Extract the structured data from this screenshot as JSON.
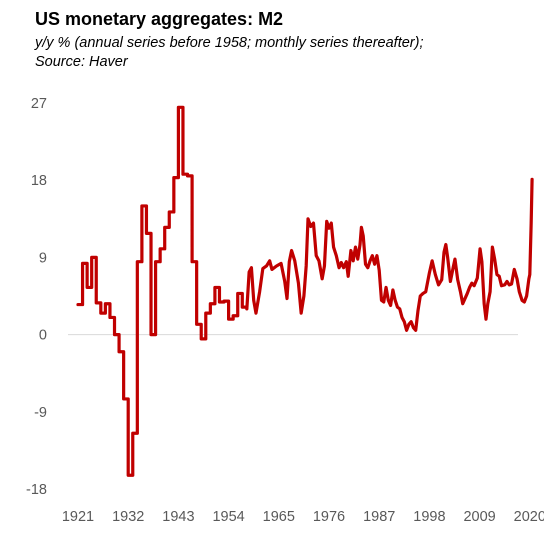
{
  "chart_data": {
    "type": "line",
    "title": "US monetary aggregates: M2",
    "subtitle_lines": [
      "y/y % (annual series before 1958; monthly series thereafter);",
      "Source: Haver"
    ],
    "xlabel": "",
    "ylabel": "",
    "x_ticks": [
      "1921",
      "1932",
      "1943",
      "1954",
      "1965",
      "1976",
      "1987",
      "1998",
      "2009",
      "2020"
    ],
    "y_ticks": [
      "27",
      "18",
      "9",
      "0",
      "-9",
      "-18"
    ],
    "xlim": [
      1921,
      2022
    ],
    "ylim": [
      -18,
      27
    ],
    "grid": false,
    "legend": "none",
    "line_color": "#c00000",
    "zero_line_color": "#d9d9d9",
    "series": [
      {
        "annual_steps": [
          [
            1921,
            3.5
          ],
          [
            1922,
            8.3
          ],
          [
            1923,
            5.5
          ],
          [
            1924,
            9.0
          ],
          [
            1925,
            3.7
          ],
          [
            1926,
            2.5
          ],
          [
            1927,
            3.6
          ],
          [
            1928,
            2.0
          ],
          [
            1929,
            0.0
          ],
          [
            1930,
            -2.0
          ],
          [
            1931,
            -7.5
          ],
          [
            1932,
            -16.4
          ],
          [
            1933,
            -11.5
          ],
          [
            1934,
            8.5
          ],
          [
            1935,
            15.0
          ],
          [
            1936,
            11.8
          ],
          [
            1937,
            0.0
          ],
          [
            1938,
            8.5
          ],
          [
            1939,
            10.0
          ],
          [
            1940,
            12.5
          ],
          [
            1941,
            14.3
          ],
          [
            1942,
            18.3
          ],
          [
            1943,
            26.5
          ],
          [
            1944,
            18.7
          ],
          [
            1945,
            18.5
          ],
          [
            1946,
            8.5
          ],
          [
            1947,
            1.2
          ],
          [
            1948,
            -0.5
          ],
          [
            1949,
            2.5
          ],
          [
            1950,
            3.6
          ],
          [
            1951,
            5.5
          ],
          [
            1952,
            3.8
          ],
          [
            1953,
            3.9
          ],
          [
            1954,
            1.8
          ],
          [
            1955,
            2.2
          ],
          [
            1956,
            4.8
          ],
          [
            1957,
            3.2
          ]
        ],
        "monthly_anchors": [
          [
            1958.0,
            3.0
          ],
          [
            1958.5,
            7.3
          ],
          [
            1959.0,
            7.8
          ],
          [
            1959.5,
            4.0
          ],
          [
            1960.0,
            2.5
          ],
          [
            1960.8,
            5.0
          ],
          [
            1961.5,
            7.7
          ],
          [
            1962.3,
            8.0
          ],
          [
            1963.0,
            8.6
          ],
          [
            1963.5,
            7.6
          ],
          [
            1964.5,
            8.0
          ],
          [
            1965.5,
            8.3
          ],
          [
            1966.3,
            6.2
          ],
          [
            1966.8,
            4.2
          ],
          [
            1967.3,
            8.5
          ],
          [
            1967.8,
            9.8
          ],
          [
            1968.5,
            8.6
          ],
          [
            1969.3,
            6.0
          ],
          [
            1969.9,
            2.5
          ],
          [
            1970.5,
            4.5
          ],
          [
            1971.0,
            8.0
          ],
          [
            1971.4,
            13.5
          ],
          [
            1972.0,
            12.6
          ],
          [
            1972.6,
            13.0
          ],
          [
            1973.2,
            9.2
          ],
          [
            1973.8,
            8.6
          ],
          [
            1974.5,
            6.5
          ],
          [
            1975.0,
            8.0
          ],
          [
            1975.5,
            13.2
          ],
          [
            1976.0,
            12.4
          ],
          [
            1976.5,
            13.0
          ],
          [
            1977.0,
            10.2
          ],
          [
            1977.6,
            9.2
          ],
          [
            1978.2,
            7.8
          ],
          [
            1978.7,
            8.4
          ],
          [
            1979.2,
            7.8
          ],
          [
            1979.8,
            8.5
          ],
          [
            1980.2,
            6.8
          ],
          [
            1980.8,
            9.8
          ],
          [
            1981.3,
            8.6
          ],
          [
            1981.8,
            10.2
          ],
          [
            1982.3,
            8.8
          ],
          [
            1982.8,
            10.5
          ],
          [
            1983.1,
            12.5
          ],
          [
            1983.5,
            11.5
          ],
          [
            1984.0,
            8.2
          ],
          [
            1984.5,
            7.8
          ],
          [
            1985.0,
            8.6
          ],
          [
            1985.5,
            9.2
          ],
          [
            1986.0,
            8.2
          ],
          [
            1986.5,
            9.2
          ],
          [
            1987.0,
            7.5
          ],
          [
            1987.5,
            4.0
          ],
          [
            1988.0,
            3.8
          ],
          [
            1988.5,
            5.5
          ],
          [
            1989.0,
            4.0
          ],
          [
            1989.5,
            3.4
          ],
          [
            1990.0,
            5.2
          ],
          [
            1990.5,
            4.0
          ],
          [
            1991.0,
            3.2
          ],
          [
            1991.5,
            3.0
          ],
          [
            1992.0,
            2.0
          ],
          [
            1992.5,
            1.5
          ],
          [
            1993.0,
            0.5
          ],
          [
            1993.5,
            1.2
          ],
          [
            1994.0,
            1.5
          ],
          [
            1994.5,
            0.8
          ],
          [
            1995.0,
            0.5
          ],
          [
            1995.5,
            2.8
          ],
          [
            1996.0,
            4.5
          ],
          [
            1996.6,
            4.8
          ],
          [
            1997.2,
            5.0
          ],
          [
            1998.0,
            7.2
          ],
          [
            1998.6,
            8.6
          ],
          [
            1999.3,
            7.0
          ],
          [
            2000.0,
            5.8
          ],
          [
            2000.7,
            6.4
          ],
          [
            2001.2,
            9.6
          ],
          [
            2001.6,
            10.5
          ],
          [
            2002.0,
            9.0
          ],
          [
            2002.6,
            6.2
          ],
          [
            2003.2,
            7.8
          ],
          [
            2003.6,
            8.8
          ],
          [
            2004.2,
            6.4
          ],
          [
            2004.8,
            5.0
          ],
          [
            2005.3,
            3.6
          ],
          [
            2005.8,
            4.2
          ],
          [
            2006.3,
            4.8
          ],
          [
            2006.8,
            5.5
          ],
          [
            2007.3,
            6.0
          ],
          [
            2007.8,
            5.7
          ],
          [
            2008.5,
            6.6
          ],
          [
            2009.1,
            10.0
          ],
          [
            2009.5,
            8.5
          ],
          [
            2010.0,
            3.6
          ],
          [
            2010.4,
            1.8
          ],
          [
            2010.8,
            3.6
          ],
          [
            2011.3,
            5.0
          ],
          [
            2011.8,
            10.2
          ],
          [
            2012.3,
            8.8
          ],
          [
            2012.8,
            7.0
          ],
          [
            2013.3,
            6.8
          ],
          [
            2013.8,
            5.7
          ],
          [
            2014.5,
            5.8
          ],
          [
            2015.0,
            6.2
          ],
          [
            2015.5,
            5.8
          ],
          [
            2016.0,
            5.9
          ],
          [
            2016.6,
            7.6
          ],
          [
            2017.2,
            6.5
          ],
          [
            2017.7,
            5.0
          ],
          [
            2018.3,
            4.0
          ],
          [
            2018.8,
            3.8
          ],
          [
            2019.3,
            4.5
          ],
          [
            2019.8,
            6.5
          ],
          [
            2020.0,
            7.0
          ],
          [
            2020.3,
            13.0
          ],
          [
            2020.5,
            18.1
          ]
        ]
      }
    ]
  }
}
